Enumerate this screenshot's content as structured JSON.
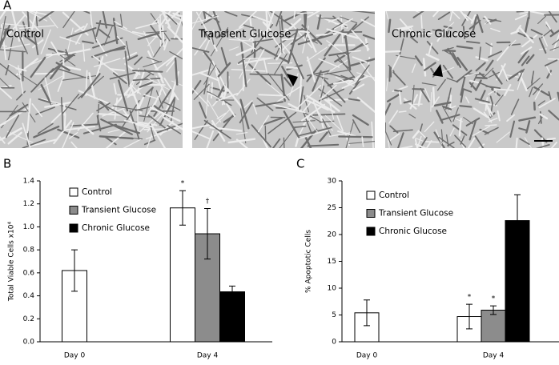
{
  "panel_labels": [
    "A",
    "B",
    "C"
  ],
  "images": [
    {
      "caption": "Control"
    },
    {
      "caption": "Transient Glucose"
    },
    {
      "caption": "Chronic Glucose"
    }
  ],
  "chart_data": [
    {
      "type": "bar",
      "ylabel": "Total Viable Cells x10⁴",
      "categories": [
        "Day 0",
        "Day 4"
      ],
      "series": [
        {
          "name": "Control",
          "color": "#ffffff",
          "values": [
            0.62,
            1.165
          ],
          "errors": [
            0.18,
            0.15
          ]
        },
        {
          "name": "Transient Glucose",
          "color": "#8c8c8c",
          "values": [
            null,
            0.94
          ],
          "errors": [
            null,
            0.22
          ]
        },
        {
          "name": "Chronic Glucose",
          "color": "#000000",
          "values": [
            null,
            0.435
          ],
          "errors": [
            null,
            0.05
          ]
        }
      ],
      "annotations": [
        "*",
        "†"
      ],
      "ylim": [
        0,
        1.4
      ],
      "yticks": [
        {
          "value": 0,
          "label": "0.0"
        },
        0.2,
        0.4,
        0.6,
        0.8,
        {
          "value": 1,
          "label": "1.0"
        },
        1.2,
        1.4
      ]
    },
    {
      "type": "bar",
      "ylabel": "% Apoptotic Cells",
      "categories": [
        "Day 0",
        "Day 4"
      ],
      "series": [
        {
          "name": "Control",
          "color": "#ffffff",
          "values": [
            5.4,
            4.7
          ],
          "errors": [
            2.4,
            2.3
          ]
        },
        {
          "name": "Transient Glucose",
          "color": "#8c8c8c",
          "values": [
            null,
            5.9
          ],
          "errors": [
            null,
            0.8
          ]
        },
        {
          "name": "Chronic Glucose",
          "color": "#000000",
          "values": [
            null,
            22.6
          ],
          "errors": [
            null,
            4.8
          ]
        }
      ],
      "annotations": [
        "*",
        "*"
      ],
      "ylim": [
        0,
        30
      ],
      "yticks": [
        0,
        5,
        10,
        15,
        20,
        25,
        30
      ]
    }
  ]
}
